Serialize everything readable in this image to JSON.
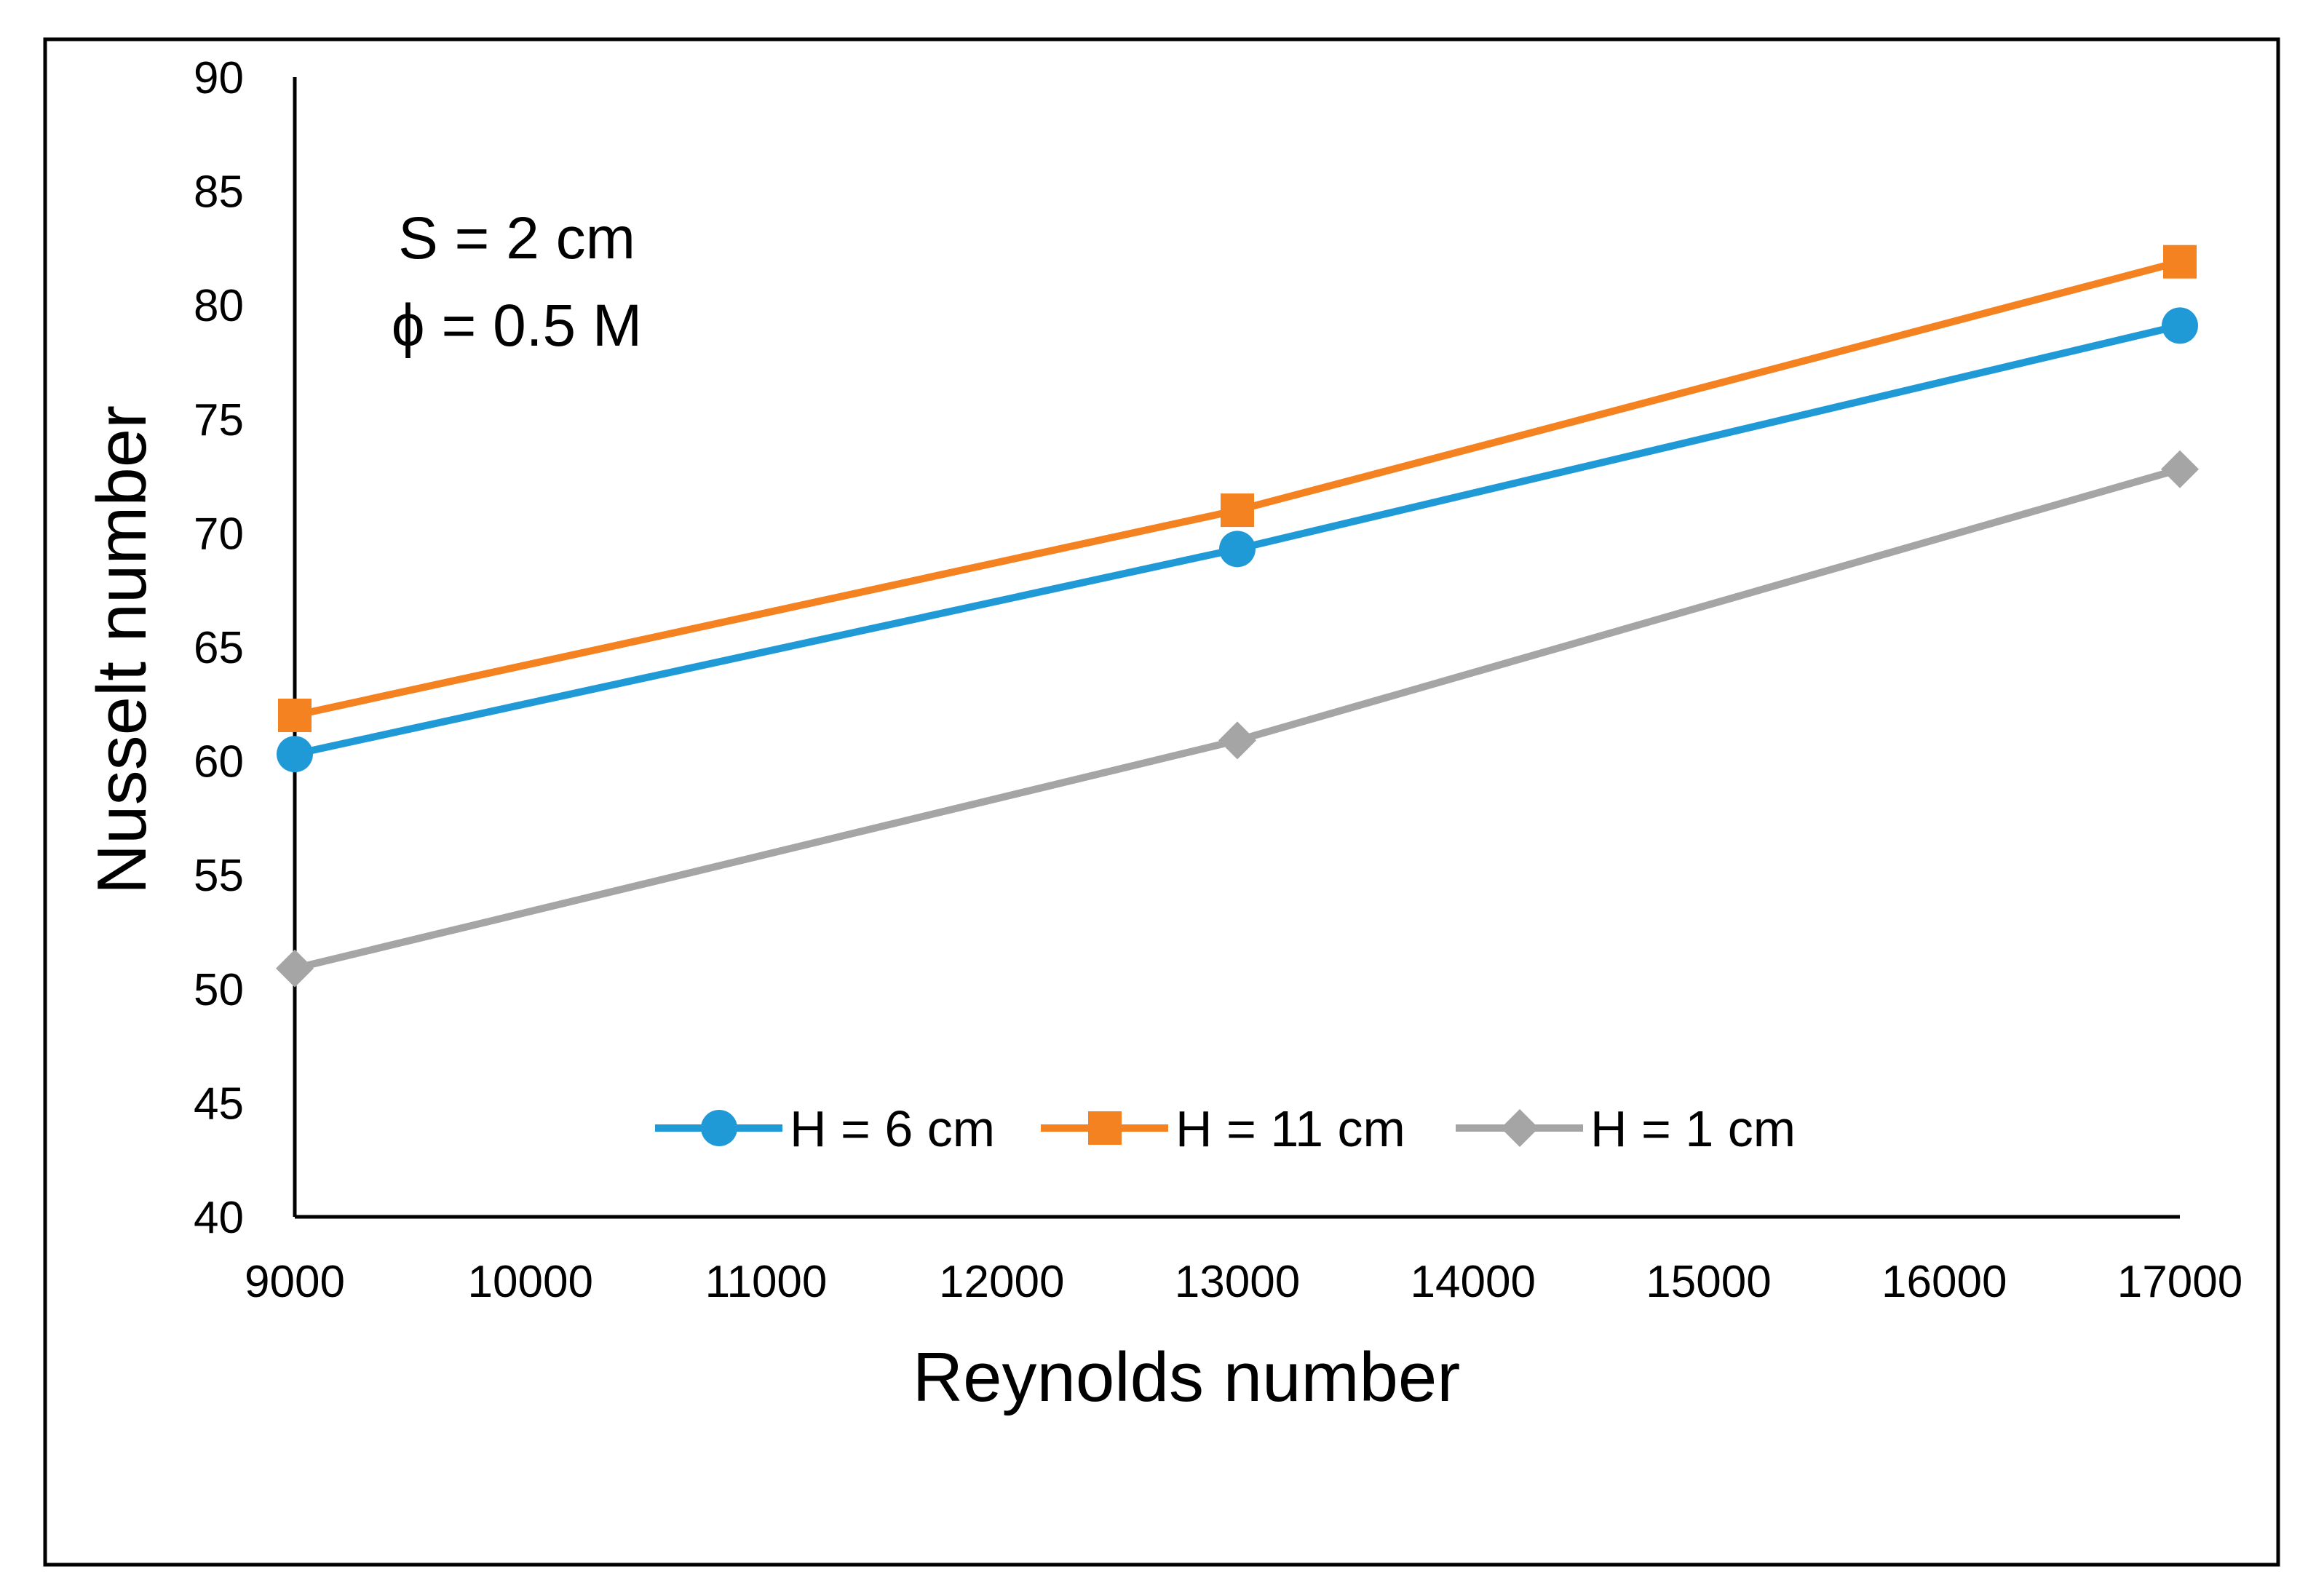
{
  "chart_data": {
    "type": "line",
    "title": "",
    "xlabel": "Reynolds number",
    "ylabel": "Nusselt number",
    "xlim": [
      9000,
      17000
    ],
    "ylim": [
      40,
      90
    ],
    "x_ticks": [
      9000,
      10000,
      11000,
      12000,
      13000,
      14000,
      15000,
      16000,
      17000
    ],
    "x_tick_labels": [
      "9000",
      "10000",
      "11000",
      "12000",
      "13000",
      "14000",
      "15000",
      "16000",
      "17000"
    ],
    "y_ticks": [
      40,
      45,
      50,
      55,
      60,
      65,
      70,
      75,
      80,
      85,
      90
    ],
    "y_tick_labels": [
      "40",
      "45",
      "50",
      "55",
      "60",
      "65",
      "70",
      "75",
      "80",
      "85",
      "90"
    ],
    "grid": false,
    "legend_position": "bottom-center",
    "x": [
      9000,
      13000,
      17000
    ],
    "series": [
      {
        "name": "H = 6 cm",
        "values": [
          60.3,
          69.3,
          79.1
        ],
        "color": "#1f9ad6",
        "marker": "circle"
      },
      {
        "name": "H = 11 cm",
        "values": [
          62.0,
          71.0,
          81.9
        ],
        "color": "#f58220",
        "marker": "square"
      },
      {
        "name": "H = 1 cm",
        "values": [
          50.9,
          60.9,
          72.8
        ],
        "color": "#a5a5a5",
        "marker": "diamond"
      }
    ],
    "annotations": [
      "S = 2 cm",
      "ϕ = 0.5 M"
    ]
  }
}
